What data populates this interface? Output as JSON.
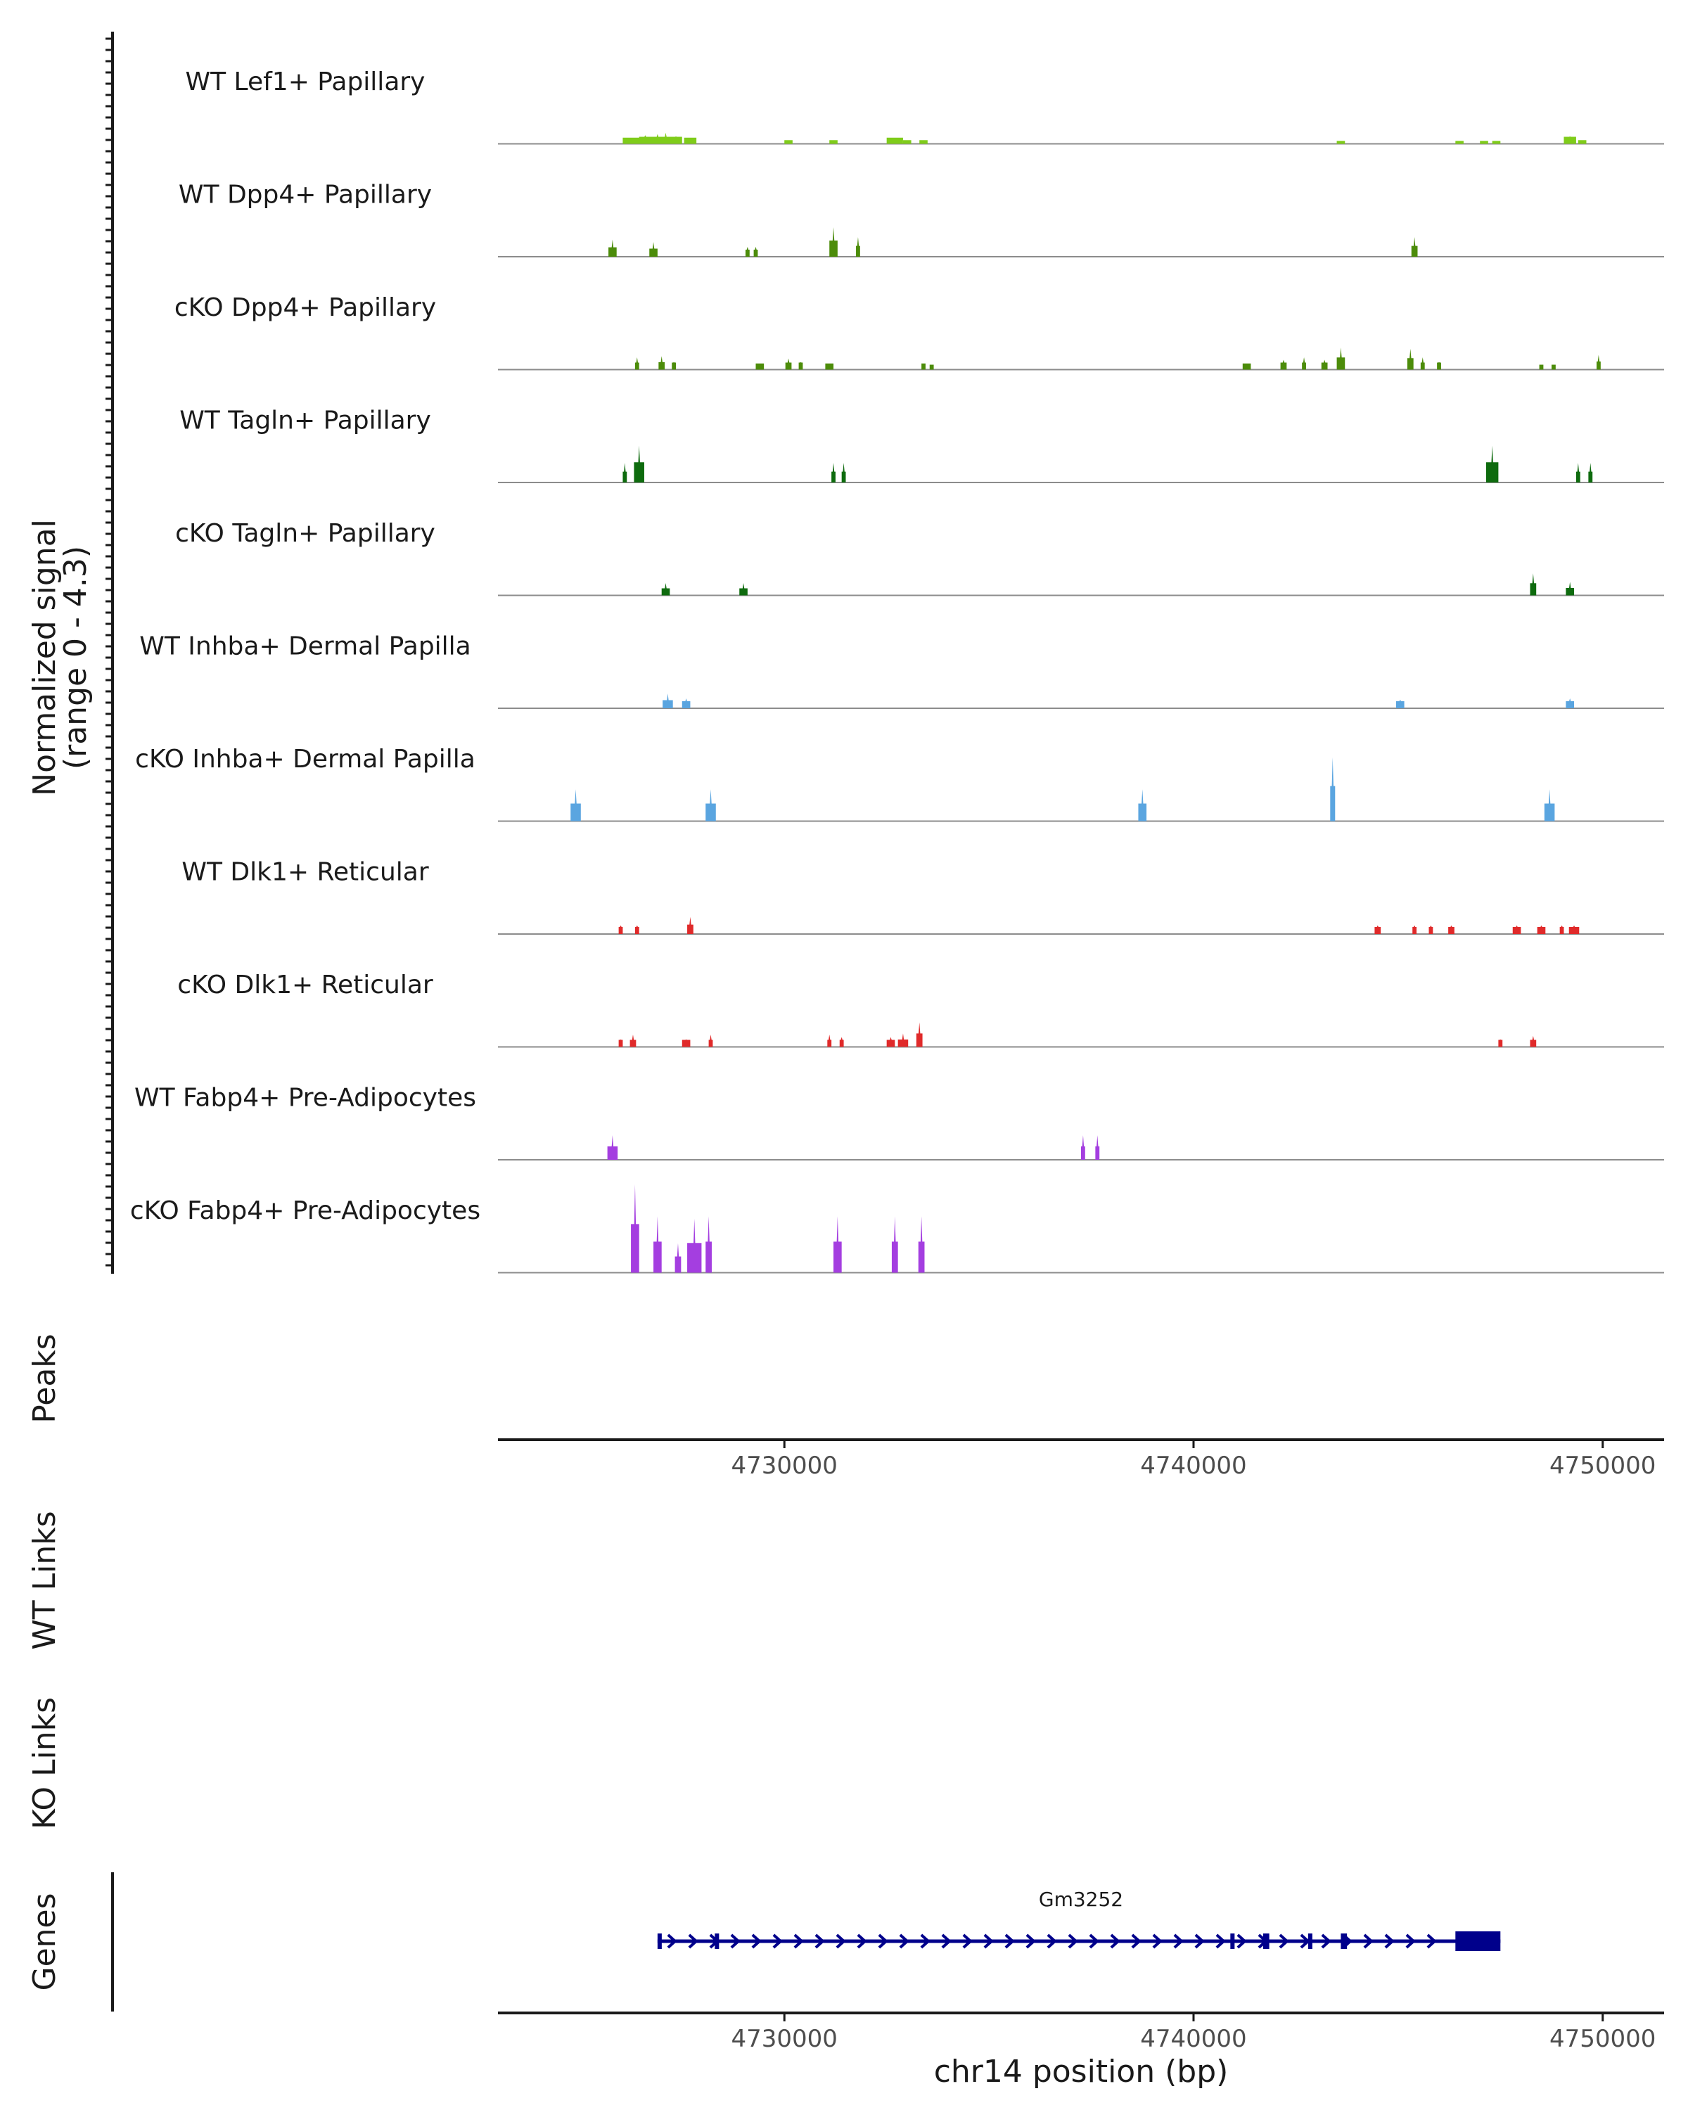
{
  "chart_data": {
    "type": "coverage-track",
    "y_axis_title_line1": "Normalized signal",
    "y_axis_title_line2": "(range 0 - 4.3)",
    "ylim": [
      0,
      4.3
    ],
    "xlim": [
      4723000,
      4751500
    ],
    "x_ticks": [
      4730000,
      4740000,
      4750000
    ],
    "x_tick_labels": [
      "4730000",
      "4740000",
      "4750000"
    ],
    "x_axis_label": "chr14 position (bp)",
    "tracks": [
      {
        "name": "WT Lef1+ Papillary",
        "color": "#7FCC1A",
        "peaks": [
          [
            4726300,
            0.25,
            500
          ],
          [
            4726600,
            0.35,
            300
          ],
          [
            4726900,
            0.4,
            400
          ],
          [
            4727100,
            0.45,
            300
          ],
          [
            4727350,
            0.3,
            300
          ],
          [
            4727700,
            0.25,
            300
          ],
          [
            4730100,
            0.15,
            200
          ],
          [
            4731200,
            0.15,
            200
          ],
          [
            4732700,
            0.25,
            400
          ],
          [
            4733000,
            0.15,
            200
          ],
          [
            4733400,
            0.15,
            200
          ],
          [
            4743600,
            0.12,
            200
          ],
          [
            4746500,
            0.12,
            200
          ],
          [
            4747100,
            0.12,
            200
          ],
          [
            4747400,
            0.12,
            200
          ],
          [
            4749200,
            0.3,
            300
          ],
          [
            4749500,
            0.15,
            200
          ]
        ]
      },
      {
        "name": "WT Dpp4+ Papillary",
        "color": "#4C8C0A",
        "peaks": [
          [
            4725800,
            0.7,
            200
          ],
          [
            4726800,
            0.6,
            200
          ],
          [
            4729100,
            0.4,
            100
          ],
          [
            4729300,
            0.4,
            100
          ],
          [
            4731200,
            1.2,
            200
          ],
          [
            4731800,
            0.8,
            100
          ],
          [
            4745400,
            0.8,
            150
          ]
        ]
      },
      {
        "name": "cKO Dpp4+ Papillary",
        "color": "#4C8C0A",
        "peaks": [
          [
            4726400,
            0.5,
            100
          ],
          [
            4727000,
            0.55,
            150
          ],
          [
            4727300,
            0.3,
            100
          ],
          [
            4729400,
            0.25,
            200
          ],
          [
            4730100,
            0.45,
            150
          ],
          [
            4730400,
            0.3,
            100
          ],
          [
            4731100,
            0.25,
            200
          ],
          [
            4733400,
            0.25,
            100
          ],
          [
            4733600,
            0.2,
            100
          ],
          [
            4741300,
            0.25,
            200
          ],
          [
            4742200,
            0.4,
            150
          ],
          [
            4742700,
            0.5,
            100
          ],
          [
            4743200,
            0.4,
            150
          ],
          [
            4743600,
            0.9,
            200
          ],
          [
            4745300,
            0.85,
            150
          ],
          [
            4745600,
            0.5,
            100
          ],
          [
            4746000,
            0.3,
            100
          ],
          [
            4748500,
            0.2,
            100
          ],
          [
            4748800,
            0.2,
            100
          ],
          [
            4749900,
            0.6,
            100
          ]
        ]
      },
      {
        "name": "WT Tagln+ Papillary",
        "color": "#0E6B0E",
        "peaks": [
          [
            4726100,
            0.8,
            100
          ],
          [
            4726450,
            1.5,
            250
          ],
          [
            4731200,
            0.8,
            100
          ],
          [
            4731450,
            0.8,
            100
          ],
          [
            4747300,
            1.5,
            300
          ],
          [
            4749400,
            0.8,
            100
          ],
          [
            4749700,
            0.8,
            100
          ]
        ]
      },
      {
        "name": "cKO Tagln+ Papillary",
        "color": "#0E6B0E",
        "peaks": [
          [
            4727100,
            0.5,
            200
          ],
          [
            4729000,
            0.5,
            200
          ],
          [
            4748300,
            0.9,
            150
          ],
          [
            4749200,
            0.55,
            200
          ]
        ]
      },
      {
        "name": "WT Inhba+ Dermal Papilla",
        "color": "#5AA5E0",
        "peaks": [
          [
            4727150,
            0.6,
            250
          ],
          [
            4727600,
            0.4,
            200
          ],
          [
            4745050,
            0.35,
            200
          ],
          [
            4749200,
            0.4,
            200
          ]
        ]
      },
      {
        "name": "cKO Inhba+ Dermal Papilla",
        "color": "#5AA5E0",
        "peaks": [
          [
            4724900,
            1.3,
            250
          ],
          [
            4728200,
            1.3,
            250
          ],
          [
            4738750,
            1.3,
            200
          ],
          [
            4743400,
            2.6,
            120
          ],
          [
            4748700,
            1.3,
            250
          ]
        ]
      },
      {
        "name": "WT Dlk1+ Reticular",
        "color": "#E02A2A",
        "peaks": [
          [
            4726000,
            0.35,
            100
          ],
          [
            4726400,
            0.35,
            100
          ],
          [
            4727700,
            0.7,
            150
          ],
          [
            4744500,
            0.35,
            150
          ],
          [
            4745400,
            0.35,
            100
          ],
          [
            4745800,
            0.35,
            100
          ],
          [
            4746300,
            0.35,
            150
          ],
          [
            4747900,
            0.35,
            200
          ],
          [
            4748500,
            0.35,
            200
          ],
          [
            4749000,
            0.35,
            100
          ],
          [
            4749300,
            0.35,
            250
          ]
        ]
      },
      {
        "name": "cKO Dlk1+ Reticular",
        "color": "#E02A2A",
        "peaks": [
          [
            4726000,
            0.3,
            100
          ],
          [
            4726300,
            0.5,
            150
          ],
          [
            4727600,
            0.3,
            200
          ],
          [
            4728200,
            0.5,
            100
          ],
          [
            4731100,
            0.5,
            100
          ],
          [
            4731400,
            0.4,
            100
          ],
          [
            4732600,
            0.4,
            200
          ],
          [
            4732900,
            0.55,
            250
          ],
          [
            4733300,
            1.0,
            150
          ],
          [
            4747500,
            0.3,
            100
          ],
          [
            4748300,
            0.45,
            150
          ]
        ]
      },
      {
        "name": "WT Fabp4+ Pre-Adipocytes",
        "color": "#A43EE0",
        "peaks": [
          [
            4725800,
            1.0,
            250
          ],
          [
            4737300,
            1.0,
            100
          ],
          [
            4737650,
            1.0,
            100
          ]
        ]
      },
      {
        "name": "cKO Fabp4+ Pre-Adipocytes",
        "color": "#A43EE0",
        "peaks": [
          [
            4726350,
            3.6,
            200
          ],
          [
            4726900,
            2.3,
            200
          ],
          [
            4727400,
            1.2,
            150
          ],
          [
            4727800,
            2.2,
            350
          ],
          [
            4728150,
            2.3,
            150
          ],
          [
            4731300,
            2.3,
            200
          ],
          [
            4732700,
            2.3,
            150
          ],
          [
            4733350,
            2.3,
            150
          ]
        ]
      }
    ],
    "section_labels": [
      "Peaks",
      "WT Links",
      "KO Links",
      "Genes"
    ],
    "gene": {
      "name": "Gm3252",
      "start": 4726900,
      "end": 4747500,
      "strand": "+",
      "color": "#00008B",
      "exons": [
        [
          4726900,
          4727000
        ],
        [
          4728300,
          4728400
        ],
        [
          4740900,
          4741000
        ],
        [
          4741700,
          4741850
        ],
        [
          4742800,
          4742900
        ],
        [
          4743600,
          4743750
        ],
        [
          4746400,
          4747500
        ]
      ]
    }
  }
}
